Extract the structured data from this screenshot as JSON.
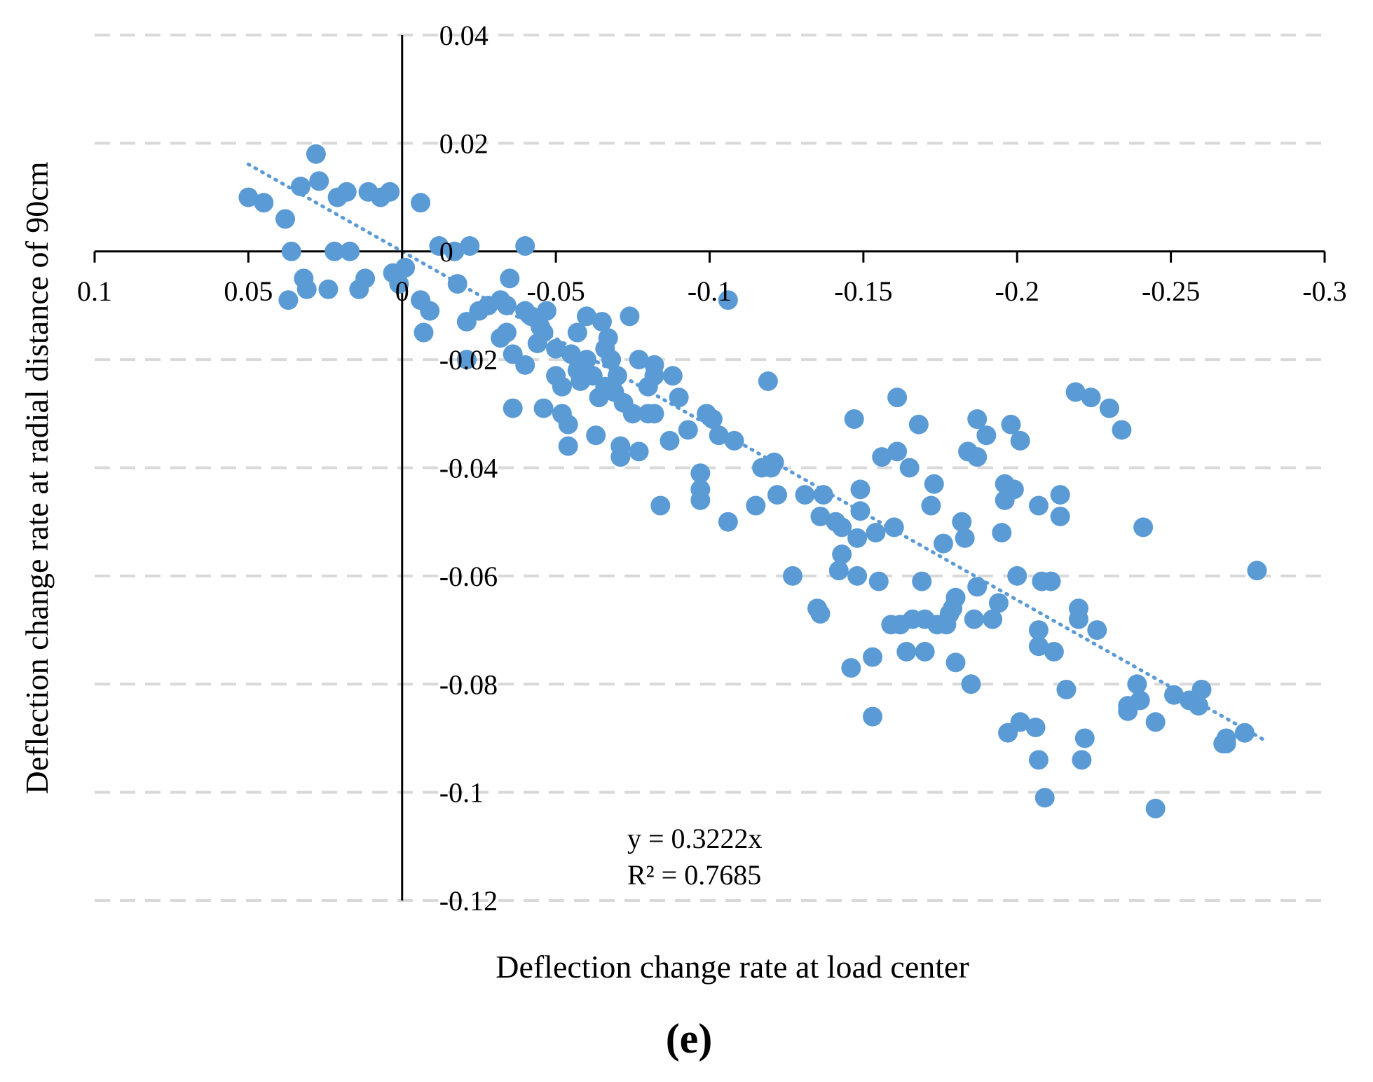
{
  "chart_data": {
    "type": "scatter",
    "xlabel": "Deflection change  rate at load center",
    "ylabel": "Deflection change  rate at radial distance of 90cm",
    "xlim": [
      0.1,
      -0.3
    ],
    "ylim": [
      -0.12,
      0.04
    ],
    "x_reversed": true,
    "x_ticks": [
      0.1,
      0.05,
      0,
      -0.05,
      -0.1,
      -0.15,
      -0.2,
      -0.25,
      -0.3
    ],
    "x_tick_labels": [
      "0.1",
      "0.05",
      "0",
      "-0.05",
      "-0.1",
      "-0.15",
      "-0.2",
      "-0.25",
      "-0.3"
    ],
    "y_ticks": [
      0.04,
      0.02,
      0,
      -0.02,
      -0.04,
      -0.06,
      -0.08,
      -0.1,
      -0.12
    ],
    "y_tick_labels": [
      "0.04",
      "0.02",
      "0",
      "-0.02",
      "-0.04",
      "-0.06",
      "-0.08",
      "-0.1",
      "-0.12"
    ],
    "grid": "horizontal dashed",
    "marker_color": "#5B9BD5",
    "trendline": {
      "slope": 0.3222,
      "x_range": [
        0.05,
        -0.28
      ],
      "style": "dotted"
    },
    "annotation": {
      "equation": "y = 0.3222x",
      "r2": "R² = 0.7685"
    },
    "panel_label": "(e)",
    "points": [
      [
        0.05,
        0.01
      ],
      [
        0.045,
        0.009
      ],
      [
        0.038,
        0.006
      ],
      [
        0.036,
        0.0
      ],
      [
        0.037,
        -0.009
      ],
      [
        0.033,
        0.012
      ],
      [
        0.028,
        0.018
      ],
      [
        0.027,
        0.013
      ],
      [
        0.032,
        -0.005
      ],
      [
        0.031,
        -0.007
      ],
      [
        0.024,
        -0.007
      ],
      [
        0.022,
        0.0
      ],
      [
        0.021,
        0.01
      ],
      [
        0.018,
        0.011
      ],
      [
        0.017,
        0.0
      ],
      [
        0.014,
        -0.007
      ],
      [
        0.012,
        -0.005
      ],
      [
        0.011,
        0.011
      ],
      [
        0.007,
        0.01
      ],
      [
        0.004,
        0.011
      ],
      [
        0.003,
        -0.004
      ],
      [
        0.001,
        -0.006
      ],
      [
        -0.001,
        -0.003
      ],
      [
        -0.006,
        0.009
      ],
      [
        -0.006,
        -0.009
      ],
      [
        -0.007,
        -0.015
      ],
      [
        -0.009,
        -0.011
      ],
      [
        -0.012,
        0.001
      ],
      [
        -0.017,
        0.0
      ],
      [
        -0.022,
        0.001
      ],
      [
        -0.018,
        -0.006
      ],
      [
        -0.021,
        -0.013
      ],
      [
        -0.025,
        -0.011
      ],
      [
        -0.021,
        -0.02
      ],
      [
        -0.028,
        -0.01
      ],
      [
        -0.032,
        -0.009
      ],
      [
        -0.035,
        -0.005
      ],
      [
        -0.034,
        -0.01
      ],
      [
        -0.032,
        -0.016
      ],
      [
        -0.034,
        -0.015
      ],
      [
        -0.036,
        -0.019
      ],
      [
        -0.036,
        -0.029
      ],
      [
        -0.04,
        0.001
      ],
      [
        -0.04,
        -0.011
      ],
      [
        -0.042,
        -0.012
      ],
      [
        -0.045,
        -0.014
      ],
      [
        -0.044,
        -0.017
      ],
      [
        -0.04,
        -0.021
      ],
      [
        -0.046,
        -0.015
      ],
      [
        -0.047,
        -0.011
      ],
      [
        -0.046,
        -0.029
      ],
      [
        -0.05,
        -0.018
      ],
      [
        -0.05,
        -0.023
      ],
      [
        -0.052,
        -0.025
      ],
      [
        -0.052,
        -0.03
      ],
      [
        -0.054,
        -0.032
      ],
      [
        -0.054,
        -0.036
      ],
      [
        -0.055,
        -0.019
      ],
      [
        -0.057,
        -0.015
      ],
      [
        -0.057,
        -0.022
      ],
      [
        -0.058,
        -0.024
      ],
      [
        -0.06,
        -0.012
      ],
      [
        -0.06,
        -0.02
      ],
      [
        -0.062,
        -0.023
      ],
      [
        -0.063,
        -0.034
      ],
      [
        -0.064,
        -0.027
      ],
      [
        -0.065,
        -0.013
      ],
      [
        -0.066,
        -0.018
      ],
      [
        -0.066,
        -0.025
      ],
      [
        -0.067,
        -0.016
      ],
      [
        -0.068,
        -0.02
      ],
      [
        -0.069,
        -0.026
      ],
      [
        -0.07,
        -0.023
      ],
      [
        -0.071,
        -0.038
      ],
      [
        -0.071,
        -0.036
      ],
      [
        -0.072,
        -0.028
      ],
      [
        -0.075,
        -0.03
      ],
      [
        -0.074,
        -0.012
      ],
      [
        -0.077,
        -0.037
      ],
      [
        -0.077,
        -0.02
      ],
      [
        -0.08,
        -0.025
      ],
      [
        -0.08,
        -0.03
      ],
      [
        -0.082,
        -0.023
      ],
      [
        -0.082,
        -0.021
      ],
      [
        -0.082,
        -0.03
      ],
      [
        -0.084,
        -0.047
      ],
      [
        -0.087,
        -0.035
      ],
      [
        -0.088,
        -0.023
      ],
      [
        -0.09,
        -0.027
      ],
      [
        -0.093,
        -0.033
      ],
      [
        -0.097,
        -0.041
      ],
      [
        -0.097,
        -0.044
      ],
      [
        -0.097,
        -0.046
      ],
      [
        -0.099,
        -0.03
      ],
      [
        -0.101,
        -0.031
      ],
      [
        -0.103,
        -0.034
      ],
      [
        -0.106,
        -0.05
      ],
      [
        -0.106,
        -0.009
      ],
      [
        -0.108,
        -0.035
      ],
      [
        -0.115,
        -0.047
      ],
      [
        -0.117,
        -0.04
      ],
      [
        -0.119,
        -0.024
      ],
      [
        -0.12,
        -0.04
      ],
      [
        -0.121,
        -0.039
      ],
      [
        -0.122,
        -0.045
      ],
      [
        -0.127,
        -0.06
      ],
      [
        -0.131,
        -0.045
      ],
      [
        -0.135,
        -0.066
      ],
      [
        -0.136,
        -0.049
      ],
      [
        -0.136,
        -0.067
      ],
      [
        -0.137,
        -0.045
      ],
      [
        -0.141,
        -0.05
      ],
      [
        -0.142,
        -0.059
      ],
      [
        -0.143,
        -0.056
      ],
      [
        -0.143,
        -0.051
      ],
      [
        -0.146,
        -0.077
      ],
      [
        -0.147,
        -0.031
      ],
      [
        -0.148,
        -0.06
      ],
      [
        -0.148,
        -0.053
      ],
      [
        -0.149,
        -0.048
      ],
      [
        -0.149,
        -0.044
      ],
      [
        -0.153,
        -0.075
      ],
      [
        -0.153,
        -0.086
      ],
      [
        -0.154,
        -0.052
      ],
      [
        -0.155,
        -0.061
      ],
      [
        -0.156,
        -0.038
      ],
      [
        -0.159,
        -0.069
      ],
      [
        -0.16,
        -0.051
      ],
      [
        -0.161,
        -0.037
      ],
      [
        -0.161,
        -0.027
      ],
      [
        -0.162,
        -0.069
      ],
      [
        -0.164,
        -0.074
      ],
      [
        -0.165,
        -0.04
      ],
      [
        -0.166,
        -0.068
      ],
      [
        -0.168,
        -0.032
      ],
      [
        -0.169,
        -0.061
      ],
      [
        -0.17,
        -0.074
      ],
      [
        -0.17,
        -0.068
      ],
      [
        -0.172,
        -0.047
      ],
      [
        -0.173,
        -0.043
      ],
      [
        -0.174,
        -0.069
      ],
      [
        -0.176,
        -0.054
      ],
      [
        -0.177,
        -0.069
      ],
      [
        -0.178,
        -0.067
      ],
      [
        -0.179,
        -0.066
      ],
      [
        -0.18,
        -0.064
      ],
      [
        -0.18,
        -0.076
      ],
      [
        -0.182,
        -0.05
      ],
      [
        -0.183,
        -0.053
      ],
      [
        -0.184,
        -0.037
      ],
      [
        -0.185,
        -0.08
      ],
      [
        -0.186,
        -0.068
      ],
      [
        -0.187,
        -0.062
      ],
      [
        -0.187,
        -0.038
      ],
      [
        -0.187,
        -0.031
      ],
      [
        -0.19,
        -0.034
      ],
      [
        -0.192,
        -0.068
      ],
      [
        -0.194,
        -0.065
      ],
      [
        -0.195,
        -0.052
      ],
      [
        -0.196,
        -0.046
      ],
      [
        -0.196,
        -0.043
      ],
      [
        -0.197,
        -0.089
      ],
      [
        -0.198,
        -0.032
      ],
      [
        -0.199,
        -0.044
      ],
      [
        -0.2,
        -0.06
      ],
      [
        -0.201,
        -0.035
      ],
      [
        -0.201,
        -0.087
      ],
      [
        -0.206,
        -0.088
      ],
      [
        -0.207,
        -0.073
      ],
      [
        -0.207,
        -0.07
      ],
      [
        -0.207,
        -0.094
      ],
      [
        -0.207,
        -0.047
      ],
      [
        -0.208,
        -0.061
      ],
      [
        -0.209,
        -0.101
      ],
      [
        -0.211,
        -0.061
      ],
      [
        -0.212,
        -0.074
      ],
      [
        -0.214,
        -0.045
      ],
      [
        -0.214,
        -0.049
      ],
      [
        -0.216,
        -0.081
      ],
      [
        -0.219,
        -0.026
      ],
      [
        -0.22,
        -0.068
      ],
      [
        -0.22,
        -0.066
      ],
      [
        -0.221,
        -0.094
      ],
      [
        -0.222,
        -0.09
      ],
      [
        -0.224,
        -0.027
      ],
      [
        -0.226,
        -0.07
      ],
      [
        -0.23,
        -0.029
      ],
      [
        -0.234,
        -0.033
      ],
      [
        -0.236,
        -0.084
      ],
      [
        -0.236,
        -0.085
      ],
      [
        -0.239,
        -0.08
      ],
      [
        -0.24,
        -0.083
      ],
      [
        -0.241,
        -0.051
      ],
      [
        -0.245,
        -0.087
      ],
      [
        -0.245,
        -0.103
      ],
      [
        -0.251,
        -0.082
      ],
      [
        -0.256,
        -0.083
      ],
      [
        -0.259,
        -0.084
      ],
      [
        -0.26,
        -0.081
      ],
      [
        -0.267,
        -0.091
      ],
      [
        -0.268,
        -0.09
      ],
      [
        -0.268,
        -0.091
      ],
      [
        -0.274,
        -0.089
      ],
      [
        -0.278,
        -0.059
      ]
    ]
  }
}
